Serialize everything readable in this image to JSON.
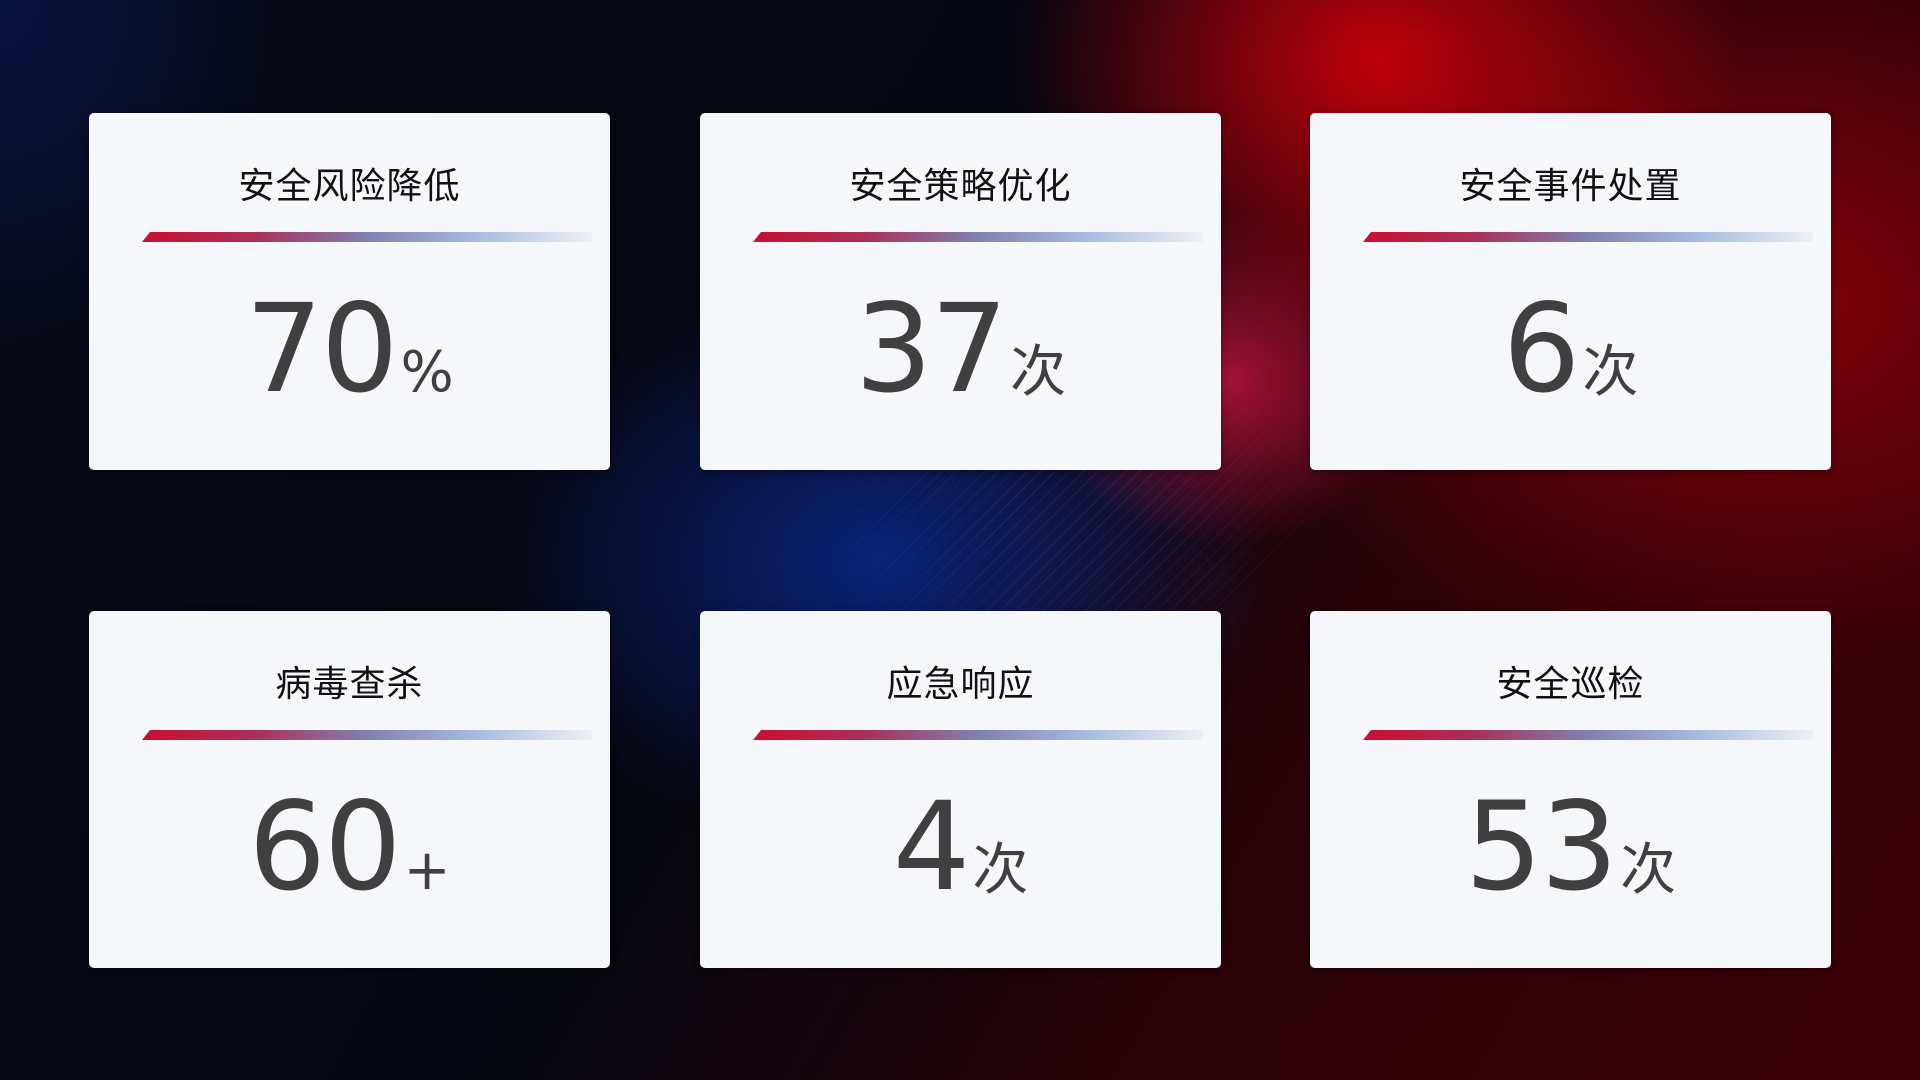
{
  "cards": [
    {
      "title": "安全风险降低",
      "value": "70",
      "unit": "%"
    },
    {
      "title": "安全策略优化",
      "value": "37",
      "unit": "次"
    },
    {
      "title": "安全事件处置",
      "value": "6",
      "unit": "次"
    },
    {
      "title": "病毒查杀",
      "value": "60",
      "unit": "+"
    },
    {
      "title": "应急响应",
      "value": "4",
      "unit": "次"
    },
    {
      "title": "安全巡检",
      "value": "53",
      "unit": "次"
    }
  ],
  "colors": {
    "accent_red": "#c8102e",
    "accent_blue": "#8080b0",
    "card_bg": "#f5f7fb",
    "value_text": "#404040"
  }
}
